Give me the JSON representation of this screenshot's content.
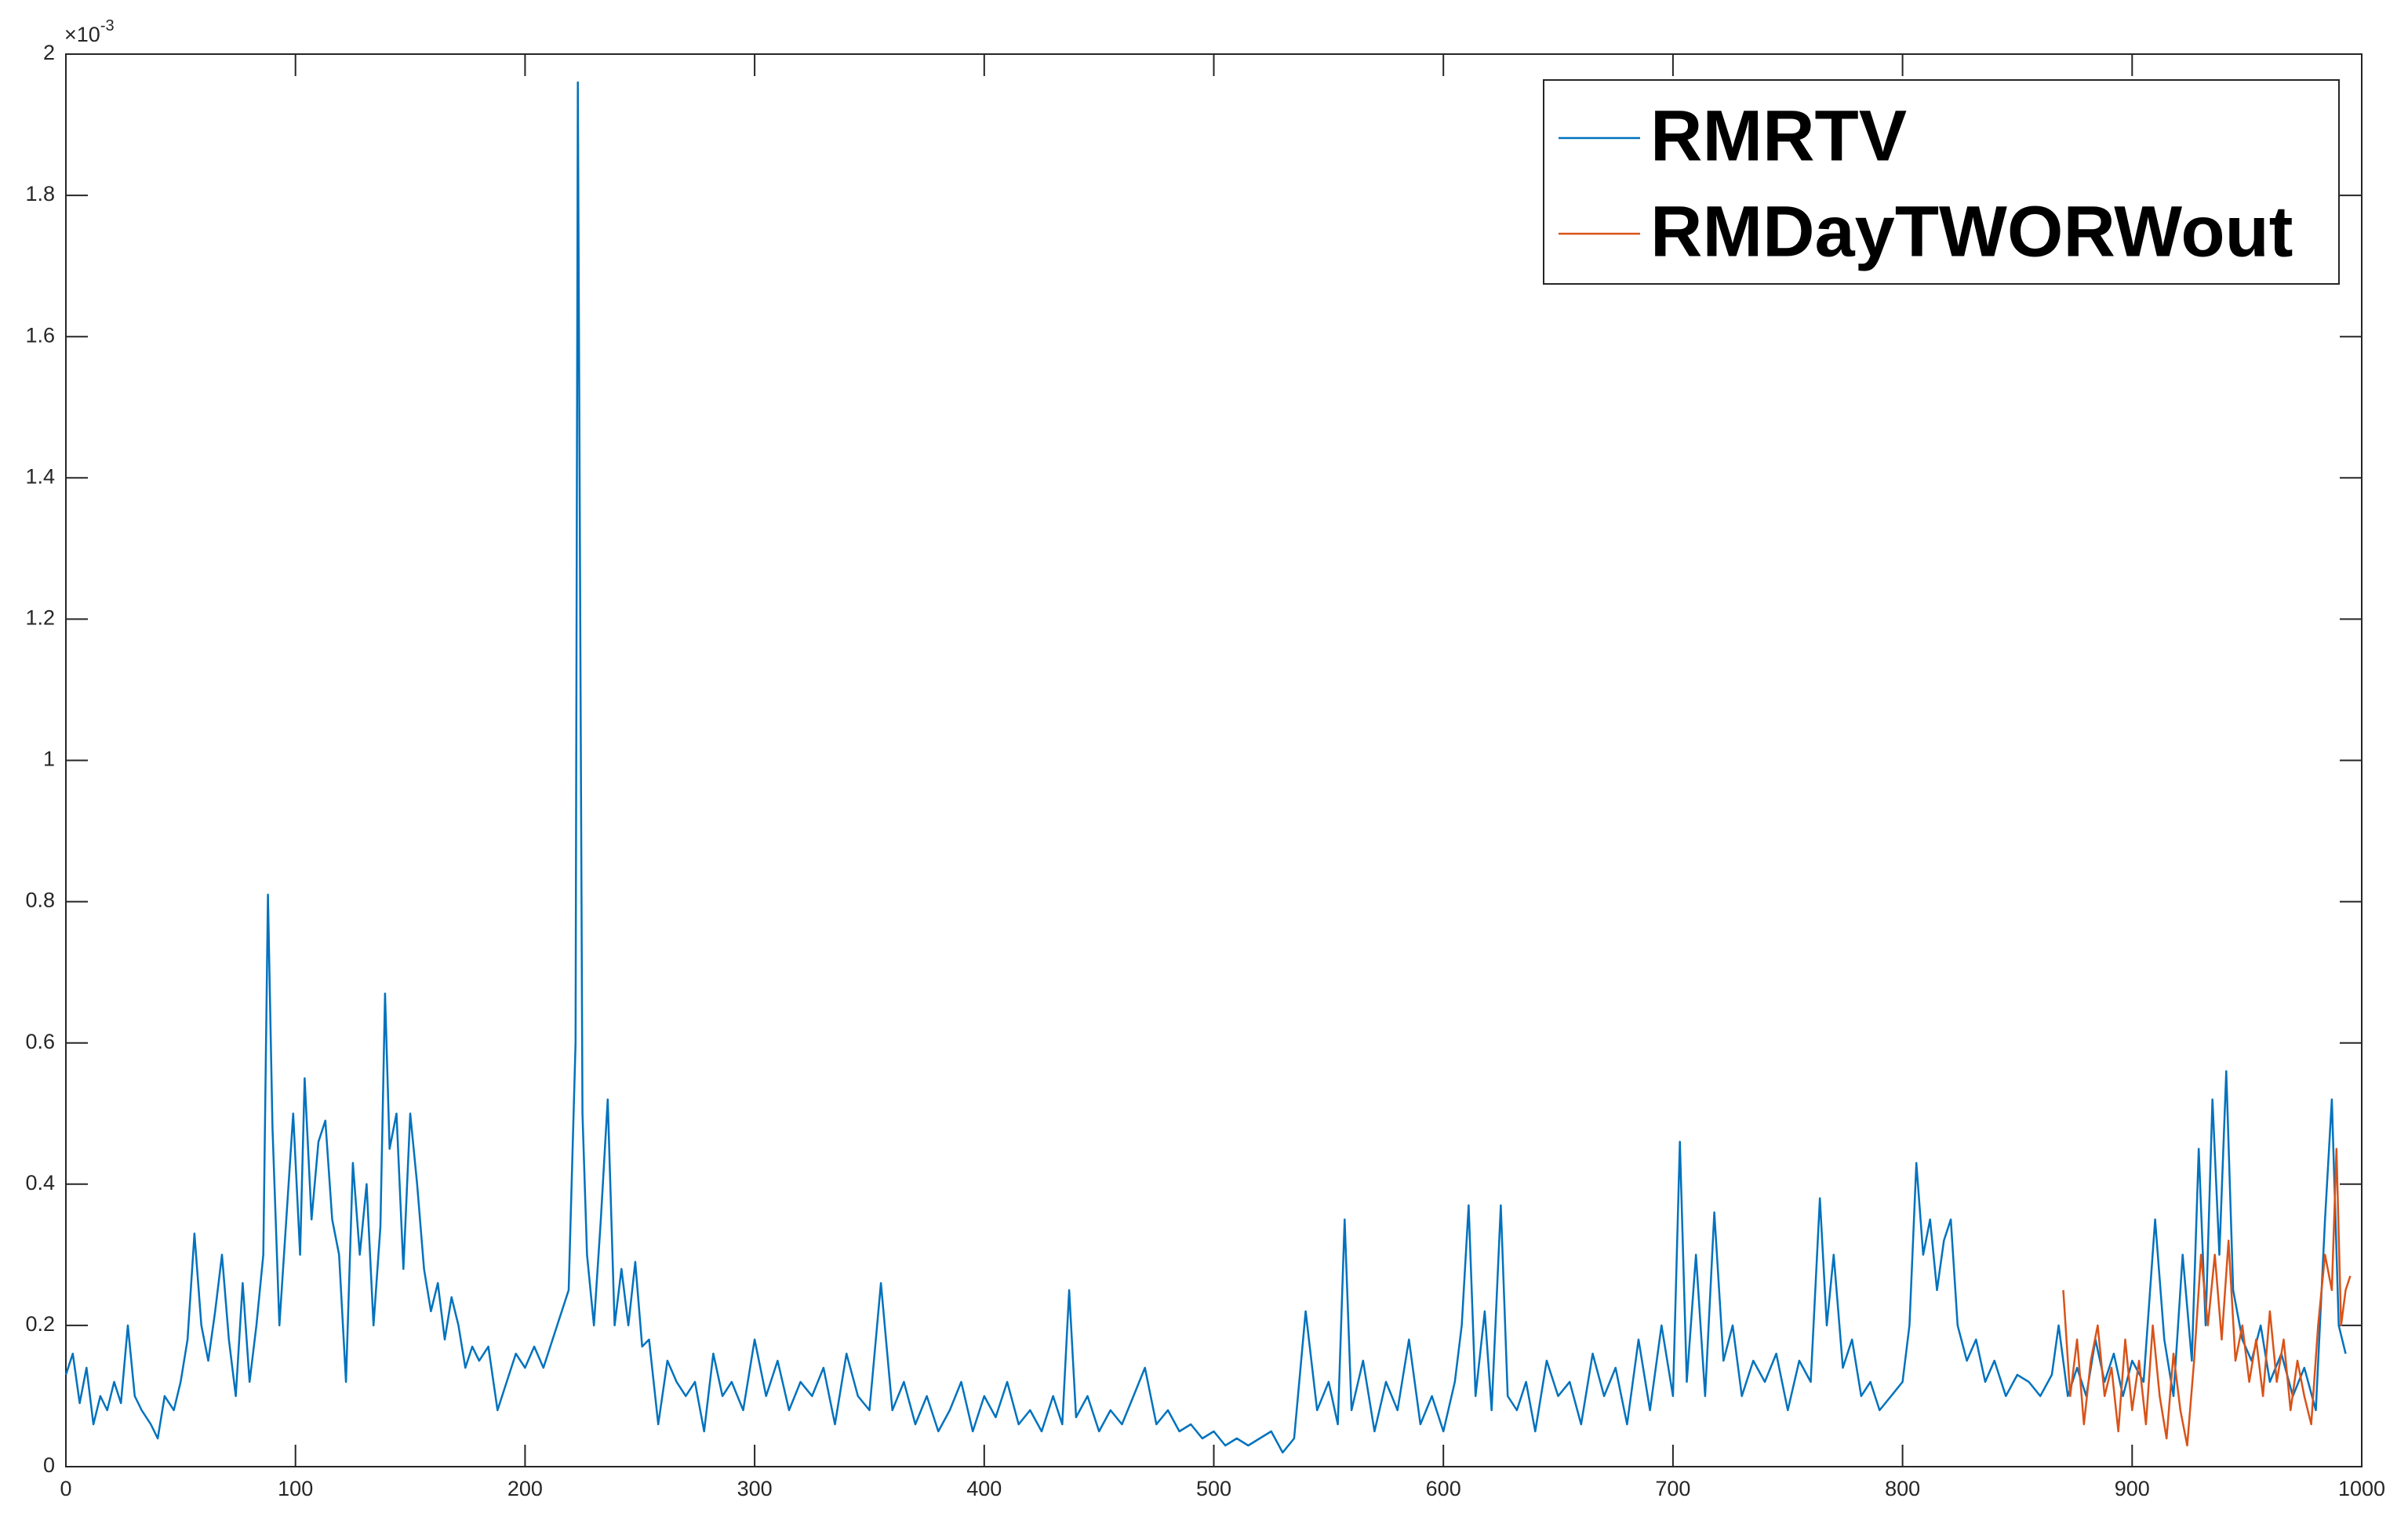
{
  "chart_data": {
    "type": "line",
    "y_multiplier": {
      "base": "×10",
      "exponent": "-3"
    },
    "xlim": [
      0,
      1000
    ],
    "xticks": [
      0,
      100,
      200,
      300,
      400,
      500,
      600,
      700,
      800,
      900,
      1000
    ],
    "ylim": [
      0,
      2
    ],
    "yticks": [
      0,
      0.2,
      0.4,
      0.6,
      0.8,
      1,
      1.2,
      1.4,
      1.6,
      1.8,
      2
    ],
    "legend": "upper right",
    "series": [
      {
        "name": "RMRTV",
        "color": "#0072bd",
        "x": [
          0,
          3,
          6,
          9,
          12,
          15,
          18,
          21,
          24,
          27,
          30,
          33,
          37,
          40,
          43,
          47,
          50,
          53,
          56,
          59,
          62,
          65,
          68,
          71,
          74,
          77,
          80,
          83,
          86,
          88,
          90,
          93,
          96,
          99,
          102,
          104,
          107,
          110,
          113,
          116,
          119,
          122,
          125,
          128,
          131,
          134,
          137,
          139,
          141,
          144,
          147,
          150,
          153,
          156,
          159,
          162,
          165,
          168,
          171,
          174,
          177,
          180,
          184,
          188,
          192,
          196,
          200,
          204,
          208,
          212,
          216,
          219,
          222,
          223,
          225,
          227,
          230,
          233,
          236,
          239,
          242,
          245,
          248,
          251,
          254,
          258,
          262,
          266,
          270,
          274,
          278,
          282,
          286,
          290,
          295,
          300,
          305,
          310,
          315,
          320,
          325,
          330,
          335,
          340,
          345,
          350,
          355,
          360,
          365,
          370,
          375,
          380,
          385,
          390,
          395,
          400,
          405,
          410,
          415,
          420,
          425,
          430,
          434,
          437,
          440,
          445,
          450,
          455,
          460,
          465,
          470,
          475,
          480,
          485,
          490,
          495,
          500,
          505,
          510,
          515,
          520,
          525,
          530,
          535,
          540,
          545,
          550,
          554,
          557,
          560,
          565,
          570,
          575,
          580,
          585,
          590,
          595,
          600,
          605,
          608,
          611,
          614,
          618,
          621,
          625,
          628,
          632,
          636,
          640,
          645,
          650,
          655,
          660,
          665,
          670,
          675,
          680,
          685,
          690,
          695,
          700,
          703,
          706,
          710,
          714,
          718,
          722,
          726,
          730,
          735,
          740,
          745,
          750,
          755,
          760,
          764,
          767,
          770,
          774,
          778,
          782,
          786,
          790,
          795,
          800,
          803,
          806,
          809,
          812,
          815,
          818,
          821,
          824,
          828,
          832,
          836,
          840,
          845,
          850,
          855,
          860,
          865,
          868,
          872,
          876,
          880,
          884,
          888,
          892,
          896,
          900,
          905,
          910,
          914,
          918,
          922,
          926,
          929,
          932,
          935,
          938,
          941,
          944,
          948,
          952,
          956,
          960,
          965,
          970,
          975,
          980,
          984,
          987,
          990,
          993
        ],
        "values": [
          0.13,
          0.16,
          0.09,
          0.14,
          0.06,
          0.1,
          0.08,
          0.12,
          0.09,
          0.2,
          0.1,
          0.08,
          0.06,
          0.04,
          0.1,
          0.08,
          0.12,
          0.18,
          0.33,
          0.2,
          0.15,
          0.22,
          0.3,
          0.18,
          0.1,
          0.26,
          0.12,
          0.2,
          0.3,
          0.81,
          0.48,
          0.2,
          0.35,
          0.5,
          0.3,
          0.55,
          0.35,
          0.46,
          0.49,
          0.35,
          0.3,
          0.12,
          0.43,
          0.3,
          0.4,
          0.2,
          0.34,
          0.67,
          0.45,
          0.5,
          0.28,
          0.5,
          0.4,
          0.28,
          0.22,
          0.26,
          0.18,
          0.24,
          0.2,
          0.14,
          0.17,
          0.15,
          0.17,
          0.08,
          0.12,
          0.16,
          0.14,
          0.17,
          0.14,
          0.18,
          0.22,
          0.25,
          0.6,
          1.96,
          0.5,
          0.3,
          0.2,
          0.35,
          0.52,
          0.2,
          0.28,
          0.2,
          0.29,
          0.17,
          0.18,
          0.06,
          0.15,
          0.12,
          0.1,
          0.12,
          0.05,
          0.16,
          0.1,
          0.12,
          0.08,
          0.18,
          0.1,
          0.15,
          0.08,
          0.12,
          0.1,
          0.14,
          0.06,
          0.16,
          0.1,
          0.08,
          0.26,
          0.08,
          0.12,
          0.06,
          0.1,
          0.05,
          0.08,
          0.12,
          0.05,
          0.1,
          0.07,
          0.12,
          0.06,
          0.08,
          0.05,
          0.1,
          0.06,
          0.25,
          0.07,
          0.1,
          0.05,
          0.08,
          0.06,
          0.1,
          0.14,
          0.06,
          0.08,
          0.05,
          0.06,
          0.04,
          0.05,
          0.03,
          0.04,
          0.03,
          0.04,
          0.05,
          0.02,
          0.04,
          0.22,
          0.08,
          0.12,
          0.06,
          0.35,
          0.08,
          0.15,
          0.05,
          0.12,
          0.08,
          0.18,
          0.06,
          0.1,
          0.05,
          0.12,
          0.2,
          0.37,
          0.1,
          0.22,
          0.08,
          0.37,
          0.1,
          0.08,
          0.12,
          0.05,
          0.15,
          0.1,
          0.12,
          0.06,
          0.16,
          0.1,
          0.14,
          0.06,
          0.18,
          0.08,
          0.2,
          0.1,
          0.46,
          0.12,
          0.3,
          0.1,
          0.36,
          0.15,
          0.2,
          0.1,
          0.15,
          0.12,
          0.16,
          0.08,
          0.15,
          0.12,
          0.38,
          0.2,
          0.3,
          0.14,
          0.18,
          0.1,
          0.12,
          0.08,
          0.1,
          0.12,
          0.2,
          0.43,
          0.3,
          0.35,
          0.25,
          0.32,
          0.35,
          0.2,
          0.15,
          0.18,
          0.12,
          0.15,
          0.1,
          0.13,
          0.12,
          0.1,
          0.13,
          0.2,
          0.1,
          0.14,
          0.1,
          0.18,
          0.12,
          0.16,
          0.1,
          0.15,
          0.12,
          0.35,
          0.18,
          0.1,
          0.3,
          0.15,
          0.45,
          0.2,
          0.52,
          0.3,
          0.56,
          0.25,
          0.18,
          0.15,
          0.2,
          0.12,
          0.16,
          0.1,
          0.14,
          0.08,
          0.35,
          0.52,
          0.2,
          0.16
        ]
      },
      {
        "name": "RMDayTWORWout",
        "color": "#d95319",
        "x": [
          870,
          873,
          876,
          879,
          882,
          885,
          888,
          891,
          894,
          897,
          900,
          903,
          906,
          909,
          912,
          915,
          918,
          921,
          924,
          927,
          930,
          933,
          936,
          939,
          942,
          945,
          948,
          951,
          954,
          957,
          960,
          963,
          966,
          969,
          972,
          975,
          978,
          981,
          984,
          987,
          989,
          991,
          993,
          995
        ],
        "values": [
          0.25,
          0.1,
          0.18,
          0.06,
          0.15,
          0.2,
          0.1,
          0.14,
          0.05,
          0.18,
          0.08,
          0.15,
          0.06,
          0.2,
          0.1,
          0.04,
          0.16,
          0.08,
          0.03,
          0.15,
          0.3,
          0.2,
          0.3,
          0.18,
          0.32,
          0.15,
          0.2,
          0.12,
          0.18,
          0.1,
          0.22,
          0.12,
          0.18,
          0.08,
          0.15,
          0.1,
          0.06,
          0.2,
          0.3,
          0.25,
          0.45,
          0.2,
          0.25,
          0.27
        ]
      }
    ]
  }
}
